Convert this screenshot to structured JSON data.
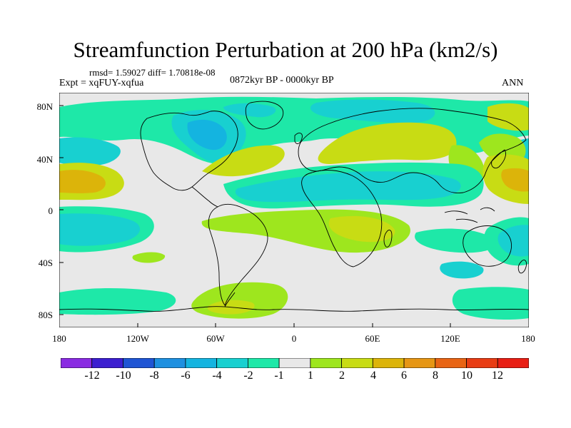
{
  "title": "Streamfunction Perturbation at 200 hPa (km2/s)",
  "stats": "rmsd= 1.59027 diff= 1.70818e-08",
  "experiment": "Expt = xqFUY-xqfua",
  "period": "0872kyr BP - 0000kyr BP",
  "season": "ANN",
  "lat_labels": [
    "80N",
    "40N",
    "0",
    "40S",
    "80S"
  ],
  "lon_labels": [
    "180",
    "120W",
    "60W",
    "0",
    "60E",
    "120E",
    "180"
  ],
  "colorbar": {
    "colors": [
      "#8a2be2",
      "#3c1fd0",
      "#1f55d4",
      "#1e90e0",
      "#14b4e0",
      "#18d0d0",
      "#1ee8a8",
      "#e8e8e8",
      "#9ee61e",
      "#c8dc14",
      "#dcb40a",
      "#e69614",
      "#e86414",
      "#e83c14",
      "#e81e14"
    ],
    "labels": [
      "-12",
      "-10",
      "-8",
      "-6",
      "-4",
      "-2",
      "-1",
      "1",
      "2",
      "4",
      "6",
      "8",
      "10",
      "12"
    ]
  }
}
